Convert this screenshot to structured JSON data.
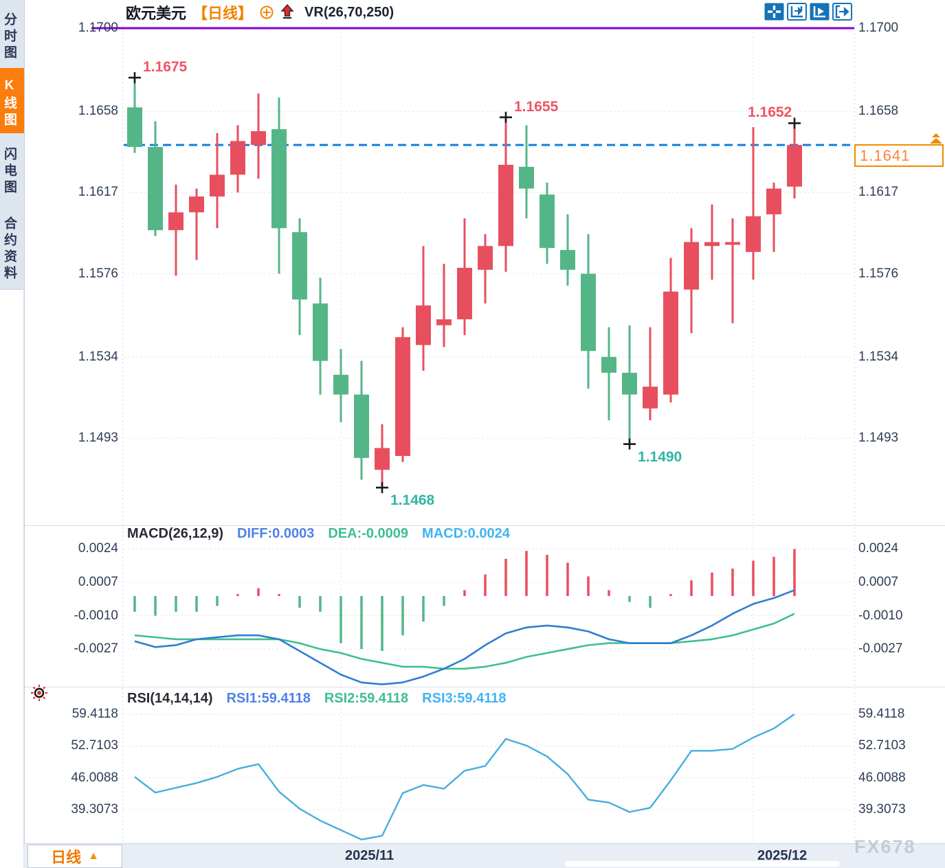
{
  "sidebar": {
    "items": [
      {
        "label": "分时图",
        "active": false
      },
      {
        "label": "K线图",
        "active": true
      },
      {
        "label": "闪电图",
        "active": false
      },
      {
        "label": "合约资料",
        "active": false
      }
    ]
  },
  "header": {
    "symbol": "欧元美元",
    "timeframe_tag": "【日线】",
    "indicator": "VR(26,70,250)"
  },
  "toolbar": {
    "icons": [
      "crosshair",
      "fit-axis",
      "auto-scroll",
      "jump-latest"
    ]
  },
  "annotations": {
    "current_price": "1.1641"
  },
  "macd_header": {
    "title": "MACD(26,12,9)",
    "diff_label": "DIFF:0.0003",
    "dea_label": "DEA:-0.0009",
    "macd_label": "MACD:0.0024"
  },
  "rsi_header": {
    "title": "RSI(14,14,14)",
    "rsi1_label": "RSI1:59.4118",
    "rsi2_label": "RSI2:59.4118",
    "rsi3_label": "RSI3:59.4118"
  },
  "bottom": {
    "timeframe": "日线",
    "arrow_icon": "▲",
    "watermark": "FX678"
  },
  "colors": {
    "up": "#e84f5e",
    "down": "#54b687",
    "dashed_line": "#0d80e8",
    "purple_line": "#8400d3",
    "grid": "#e0e0e0",
    "annotation_red": "#ef5365",
    "annotation_teal": "#2eb6a4",
    "diff_blue": "#2f7dd0",
    "dea_green": "#3fbf8f",
    "rsi_line": "#45aede",
    "marker": "#1a1a1a",
    "toolbar_blue": "#1573b6"
  },
  "chart_data": {
    "type": "candlestick",
    "title": "欧元美元 日线 (EUR/USD daily)",
    "price_axis_values": [
      1.17,
      1.1658,
      1.1617,
      1.1576,
      1.1534,
      1.1493
    ],
    "current_price": 1.1641,
    "horizontal_line_price": 1.17,
    "candles_ohlc": [
      [
        1.166,
        1.1675,
        1.1637,
        1.164
      ],
      [
        1.164,
        1.1653,
        1.1595,
        1.1598
      ],
      [
        1.1598,
        1.1621,
        1.1575,
        1.1607
      ],
      [
        1.1607,
        1.1619,
        1.1583,
        1.1615
      ],
      [
        1.1615,
        1.1647,
        1.1599,
        1.1626
      ],
      [
        1.1626,
        1.1651,
        1.1617,
        1.1643
      ],
      [
        1.1641,
        1.1667,
        1.1624,
        1.1648
      ],
      [
        1.1649,
        1.1665,
        1.1576,
        1.1599
      ],
      [
        1.1597,
        1.1604,
        1.1545,
        1.1563
      ],
      [
        1.1561,
        1.1574,
        1.1515,
        1.1532
      ],
      [
        1.1525,
        1.1538,
        1.1501,
        1.1515
      ],
      [
        1.1515,
        1.1532,
        1.1472,
        1.1483
      ],
      [
        1.1477,
        1.15,
        1.1468,
        1.1488
      ],
      [
        1.1484,
        1.1549,
        1.1481,
        1.1544
      ],
      [
        1.154,
        1.159,
        1.1527,
        1.156
      ],
      [
        1.155,
        1.1581,
        1.1539,
        1.1553
      ],
      [
        1.1553,
        1.1604,
        1.1545,
        1.1579
      ],
      [
        1.1578,
        1.1596,
        1.1561,
        1.159
      ],
      [
        1.159,
        1.1655,
        1.1577,
        1.1631
      ],
      [
        1.163,
        1.1651,
        1.1604,
        1.1619
      ],
      [
        1.1616,
        1.1622,
        1.1581,
        1.1589
      ],
      [
        1.1588,
        1.1606,
        1.157,
        1.1578
      ],
      [
        1.1576,
        1.1596,
        1.1518,
        1.1537
      ],
      [
        1.1534,
        1.1549,
        1.1502,
        1.1526
      ],
      [
        1.1526,
        1.155,
        1.149,
        1.1515
      ],
      [
        1.1508,
        1.1549,
        1.1502,
        1.1519
      ],
      [
        1.1515,
        1.1584,
        1.1511,
        1.1567
      ],
      [
        1.1568,
        1.1599,
        1.1546,
        1.1592
      ],
      [
        1.159,
        1.1611,
        1.1573,
        1.1592
      ],
      [
        1.1591,
        1.1604,
        1.1551,
        1.1592
      ],
      [
        1.1587,
        1.165,
        1.1573,
        1.1605
      ],
      [
        1.1606,
        1.1622,
        1.1587,
        1.1619
      ],
      [
        1.162,
        1.1652,
        1.1614,
        1.1641
      ]
    ],
    "markers": [
      {
        "index": 0,
        "point": "high",
        "label": "1.1675",
        "color": "red",
        "side": "right"
      },
      {
        "index": 12,
        "point": "low",
        "label": "1.1468",
        "color": "teal",
        "side": "right"
      },
      {
        "index": 18,
        "point": "high",
        "label": "1.1655",
        "color": "red",
        "side": "right"
      },
      {
        "index": 24,
        "point": "low",
        "label": "1.1490",
        "color": "teal",
        "side": "right"
      },
      {
        "index": 32,
        "point": "high",
        "label": "1.1652",
        "color": "red",
        "side": "left"
      }
    ],
    "month_ticks": [
      {
        "label": "2025/11",
        "candle_index": 10
      },
      {
        "label": "2025/12",
        "candle_index": 30
      }
    ],
    "macd": {
      "axis_values": [
        0.0024,
        0.0007,
        -0.001,
        -0.0027
      ],
      "hist": [
        -0.0008,
        -0.001,
        -0.0008,
        -0.0008,
        -0.0005,
        0.0001,
        0.0004,
        0.0001,
        -0.0006,
        -0.0008,
        -0.0024,
        -0.0027,
        -0.0028,
        -0.002,
        -0.0013,
        -0.0005,
        0.0003,
        0.0011,
        0.0019,
        0.0023,
        0.0021,
        0.0017,
        0.001,
        0.0003,
        -0.0003,
        -0.0006,
        0.0001,
        0.0008,
        0.0012,
        0.0014,
        0.0018,
        0.002,
        0.0024
      ],
      "diff": [
        -0.0023,
        -0.0026,
        -0.0025,
        -0.0022,
        -0.0021,
        -0.002,
        -0.002,
        -0.0022,
        -0.0028,
        -0.0034,
        -0.004,
        -0.0044,
        -0.0045,
        -0.0044,
        -0.0041,
        -0.0037,
        -0.0032,
        -0.0025,
        -0.0019,
        -0.0016,
        -0.0015,
        -0.0016,
        -0.0018,
        -0.0022,
        -0.0024,
        -0.0024,
        -0.0024,
        -0.002,
        -0.0015,
        -0.0009,
        -0.0004,
        -0.0001,
        0.0003
      ],
      "dea": [
        -0.002,
        -0.0021,
        -0.0022,
        -0.0022,
        -0.0022,
        -0.0022,
        -0.0022,
        -0.0022,
        -0.0024,
        -0.0027,
        -0.0029,
        -0.0032,
        -0.0034,
        -0.0036,
        -0.0036,
        -0.0037,
        -0.0037,
        -0.0036,
        -0.0034,
        -0.0031,
        -0.0029,
        -0.0027,
        -0.0025,
        -0.0024,
        -0.0024,
        -0.0024,
        -0.0024,
        -0.0023,
        -0.0022,
        -0.002,
        -0.0017,
        -0.0014,
        -0.0009
      ]
    },
    "rsi": {
      "axis_values": [
        59.4118,
        52.7103,
        46.0088,
        39.3073
      ],
      "values": [
        46.2,
        42.9,
        43.9,
        44.9,
        46.2,
        47.9,
        48.9,
        43.1,
        39.5,
        37.0,
        35.0,
        33.0,
        33.8,
        42.8,
        44.5,
        43.7,
        47.5,
        48.5,
        54.2,
        52.8,
        50.5,
        46.8,
        41.4,
        40.8,
        38.8,
        39.7,
        45.5,
        51.7,
        51.7,
        52.1,
        54.5,
        56.4,
        59.4118
      ]
    }
  }
}
